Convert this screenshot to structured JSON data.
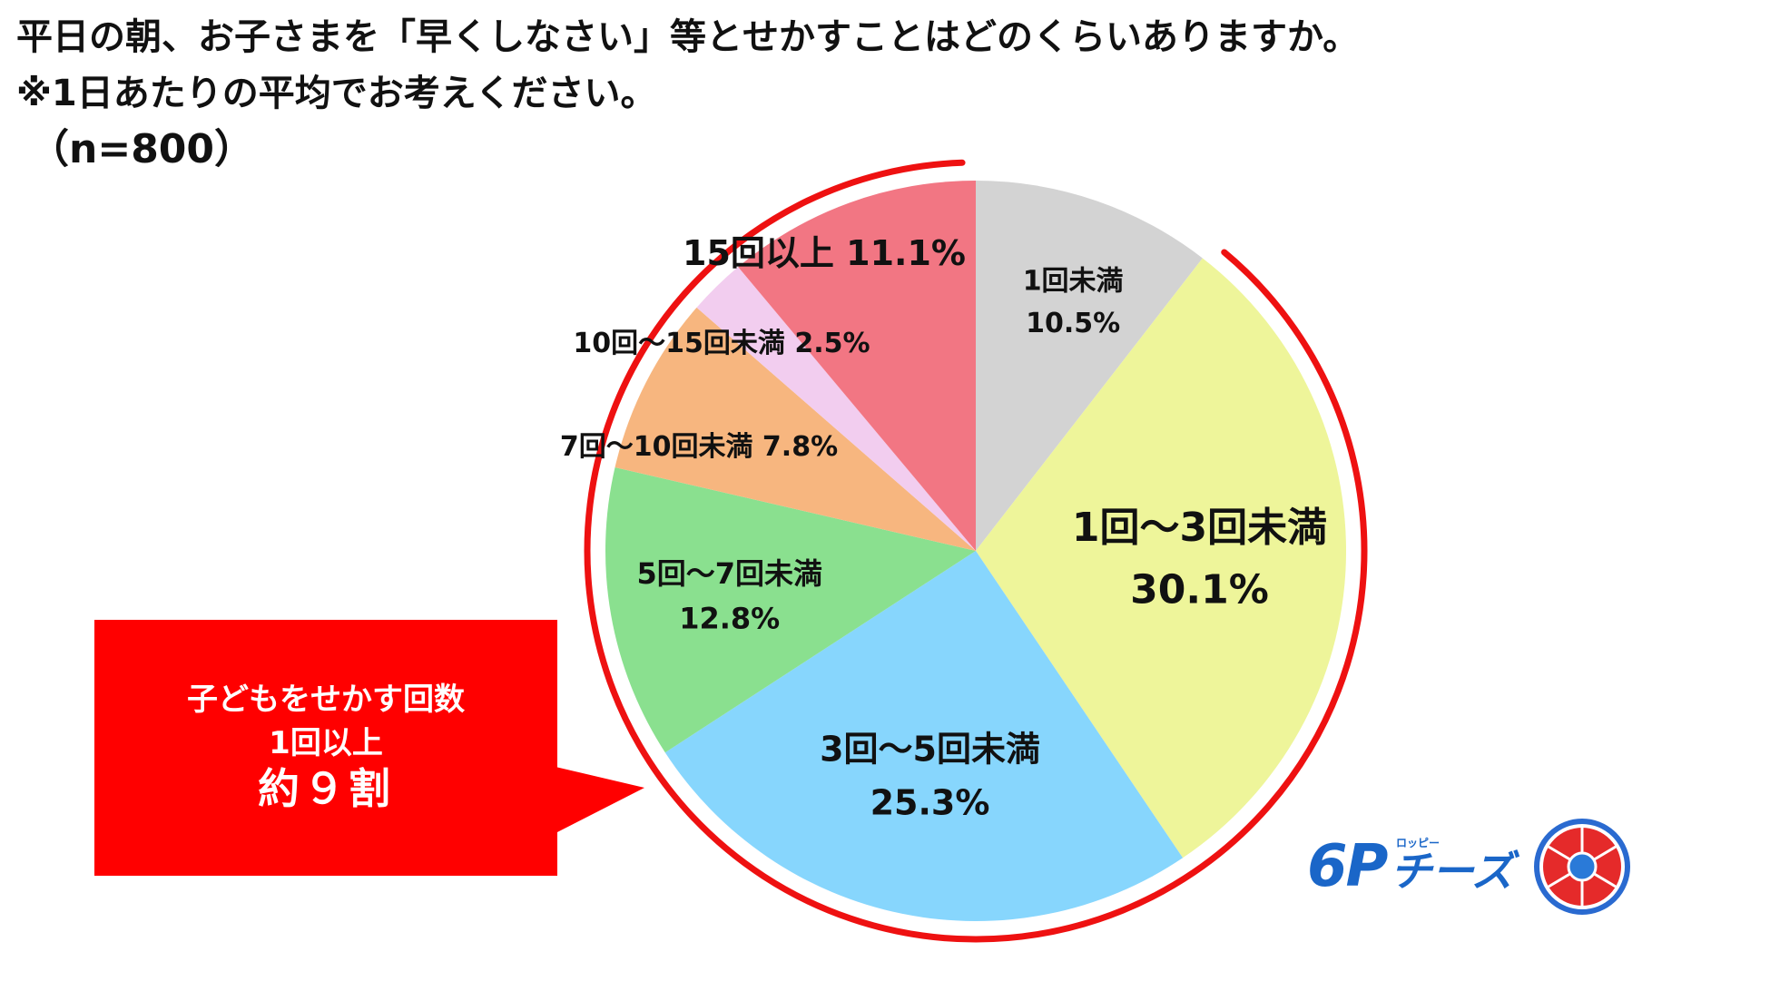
{
  "title": {
    "line1": "平日の朝、お子さまを「早くしなさい」等とせかすことはどのくらいありますか。",
    "line2": "※1日あたりの平均でお考えください。",
    "sample": "（n=800）"
  },
  "chart_data": {
    "type": "pie",
    "start": "12 o'clock, clockwise",
    "slices": [
      {
        "label": "1回未満",
        "value": 10.5,
        "display": "10.5%",
        "color": "#d3d3d3"
      },
      {
        "label": "1回～3回未満",
        "value": 30.1,
        "display": "30.1%",
        "color": "#eef59a"
      },
      {
        "label": "3回～5回未満",
        "value": 25.3,
        "display": "25.3%",
        "color": "#87d6fd"
      },
      {
        "label": "5回～7回未満",
        "value": 12.8,
        "display": "12.8%",
        "color": "#8ae08f"
      },
      {
        "label": "7回～10回未満",
        "value": 7.8,
        "display": "7.8%",
        "color": "#f7b67f"
      },
      {
        "label": "10回～15回未満",
        "value": 2.5,
        "display": "2.5%",
        "color": "#f2cdef"
      },
      {
        "label": "15回以上",
        "value": 11.1,
        "display": "11.1%",
        "color": "#f27683"
      }
    ],
    "highlight_color": "#ee1111"
  },
  "callout": {
    "line1": "子どもをせかす回数",
    "line2": "1回以上",
    "line3": "約９割",
    "color": "#ff0000"
  },
  "logo": {
    "mark": "6P",
    "name": "チーズ",
    "sub": "ロッピー",
    "color": "#1a66c8"
  }
}
